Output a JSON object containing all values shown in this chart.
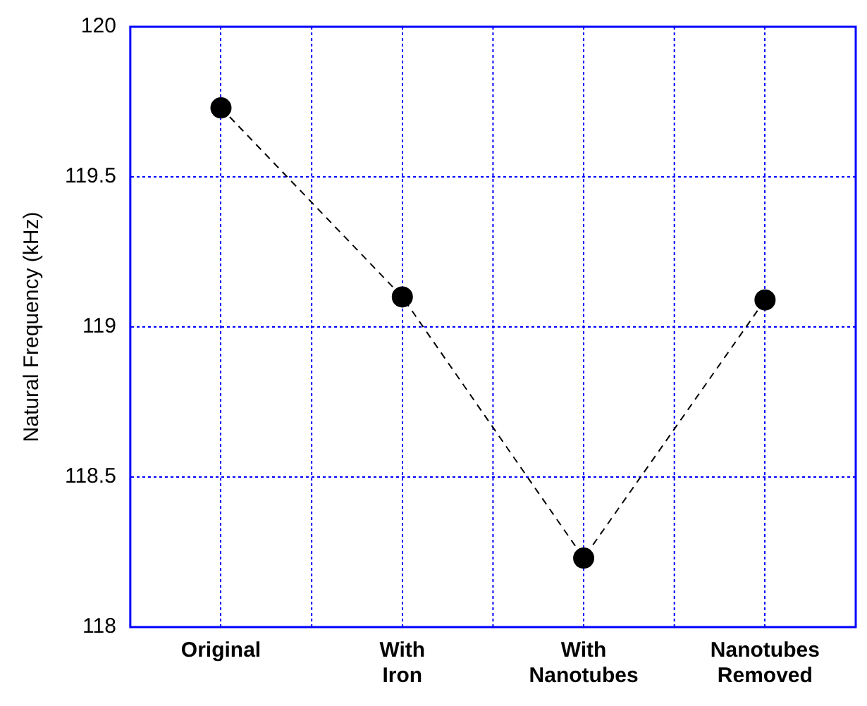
{
  "chart_data": {
    "type": "line",
    "ylabel": "Natural Frequency (kHz)",
    "categories": [
      "Original",
      "With Iron",
      "With Nanotubes",
      "Nanotubes Removed"
    ],
    "series": [
      {
        "color": "#000000",
        "values": [
          119.73,
          119.1,
          118.23,
          119.09
        ]
      }
    ],
    "ylim": [
      118,
      120
    ],
    "yticks": [
      118,
      118.5,
      119,
      119.5,
      120
    ],
    "grid": true,
    "legend": false,
    "marker": "circle",
    "line_style": "dashed"
  }
}
